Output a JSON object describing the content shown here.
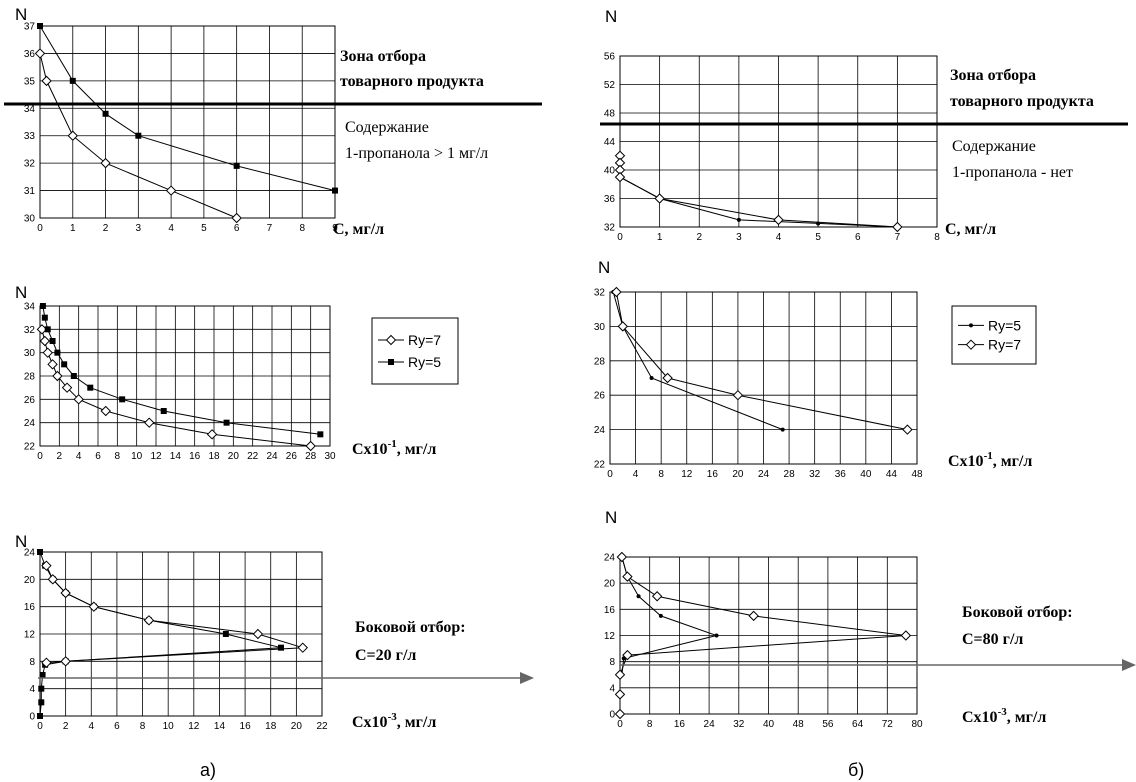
{
  "figure": {
    "caption_left": "а)",
    "caption_right": "б)"
  },
  "chart_data": [
    {
      "id": "a1",
      "type": "line",
      "ylabel": "N",
      "xlabel": "С, мг/л",
      "xlim": [
        0,
        9
      ],
      "ylim": [
        30,
        37
      ],
      "xticks": [
        "0",
        "1",
        "2",
        "3",
        "4",
        "5",
        "6",
        "7",
        "8",
        "9"
      ],
      "yticks": [
        "30",
        "31",
        "32",
        "33",
        "34",
        "35",
        "36",
        "37"
      ],
      "notes": [
        "Зона отбора",
        "товарного продукта",
        "Содержание",
        "1-пропанола > 1 мг/л"
      ],
      "series": [
        {
          "marker": "square",
          "points": [
            [
              0,
              37
            ],
            [
              1,
              35
            ],
            [
              2,
              33.8
            ],
            [
              3,
              33
            ],
            [
              6,
              31.9
            ],
            [
              9,
              31
            ]
          ]
        },
        {
          "marker": "diamond-open",
          "points": [
            [
              0,
              36
            ],
            [
              0.2,
              35
            ],
            [
              1,
              33
            ],
            [
              2,
              32
            ],
            [
              4,
              31
            ],
            [
              6,
              30
            ]
          ]
        }
      ]
    },
    {
      "id": "a2",
      "type": "line",
      "ylabel": "N",
      "xlabel": "Cx10-1, мг/л",
      "xlim": [
        0,
        30
      ],
      "ylim": [
        22,
        34
      ],
      "xticks": [
        "0",
        "2",
        "4",
        "6",
        "8",
        "10",
        "12",
        "14",
        "16",
        "18",
        "20",
        "22",
        "24",
        "26",
        "28",
        "30"
      ],
      "yticks": [
        "22",
        "24",
        "26",
        "28",
        "30",
        "32",
        "34"
      ],
      "legend": [
        "Ry=7",
        "Ry=5"
      ],
      "series": [
        {
          "name": "Ry=7",
          "marker": "diamond-open",
          "points": [
            [
              0.2,
              32
            ],
            [
              0.5,
              31
            ],
            [
              0.8,
              30
            ],
            [
              1.3,
              29
            ],
            [
              1.8,
              28
            ],
            [
              2.8,
              27
            ],
            [
              4,
              26
            ],
            [
              6.8,
              25
            ],
            [
              11.3,
              24
            ],
            [
              17.8,
              23
            ],
            [
              28,
              22
            ]
          ]
        },
        {
          "name": "Ry=5",
          "marker": "square",
          "points": [
            [
              0.3,
              34
            ],
            [
              0.5,
              33
            ],
            [
              0.8,
              32
            ],
            [
              1.3,
              31
            ],
            [
              1.8,
              30
            ],
            [
              2.5,
              29
            ],
            [
              3.5,
              28
            ],
            [
              5.2,
              27
            ],
            [
              8.5,
              26
            ],
            [
              12.8,
              25
            ],
            [
              19.3,
              24
            ],
            [
              29,
              23
            ]
          ]
        }
      ]
    },
    {
      "id": "a3",
      "type": "line",
      "ylabel": "N",
      "xlabel": "Cx10-3, мг/л",
      "xlim": [
        0,
        22
      ],
      "ylim": [
        0,
        24
      ],
      "xticks": [
        "0",
        "2",
        "4",
        "6",
        "8",
        "10",
        "12",
        "14",
        "16",
        "18",
        "20",
        "22"
      ],
      "yticks": [
        "0",
        "4",
        "8",
        "12",
        "16",
        "20",
        "24"
      ],
      "notes": [
        "Боковой отбор:",
        "С=20 г/л"
      ],
      "series": [
        {
          "marker": "square",
          "points": [
            [
              0,
              0
            ],
            [
              0.1,
              2
            ],
            [
              0.1,
              4
            ],
            [
              0.2,
              6
            ],
            [
              0.4,
              7.5
            ],
            [
              2,
              8
            ],
            [
              18.8,
              10
            ],
            [
              14.5,
              12
            ],
            [
              8.5,
              14
            ],
            [
              4.2,
              16
            ],
            [
              2,
              18
            ],
            [
              1,
              20
            ],
            [
              0.4,
              22
            ],
            [
              0,
              24
            ]
          ]
        },
        {
          "marker": "diamond-open",
          "points": [
            [
              0.5,
              7.8
            ],
            [
              2,
              8
            ],
            [
              20.5,
              10
            ],
            [
              17,
              12
            ],
            [
              8.5,
              14
            ],
            [
              4.2,
              16
            ],
            [
              2,
              18
            ],
            [
              1,
              20
            ],
            [
              0.5,
              22
            ]
          ]
        }
      ]
    },
    {
      "id": "b1",
      "type": "line",
      "ylabel": "N",
      "xlabel": "С, мг/л",
      "xlim": [
        0,
        8
      ],
      "ylim": [
        32,
        56
      ],
      "xticks": [
        "0",
        "1",
        "2",
        "3",
        "4",
        "5",
        "6",
        "7",
        "8"
      ],
      "yticks": [
        "32",
        "36",
        "40",
        "44",
        "48",
        "52",
        "56"
      ],
      "notes": [
        "Зона отбора",
        "товарного продукта",
        "Содержание",
        "1-пропанола  - нет"
      ],
      "series": [
        {
          "marker": "dot",
          "points": [
            [
              0,
              39
            ],
            [
              1,
              36
            ],
            [
              3,
              33
            ],
            [
              5,
              32.5
            ],
            [
              7,
              32
            ]
          ]
        },
        {
          "marker": "diamond-open",
          "points": [
            [
              0,
              42
            ],
            [
              0,
              41
            ],
            [
              0,
              40
            ],
            [
              0,
              39
            ],
            [
              1,
              36
            ],
            [
              4,
              33
            ],
            [
              7,
              32
            ]
          ]
        }
      ]
    },
    {
      "id": "b2",
      "type": "line",
      "ylabel": "N",
      "xlabel": "Cx10-1, мг/л",
      "xlim": [
        0,
        48
      ],
      "ylim": [
        22,
        32
      ],
      "xticks": [
        "0",
        "4",
        "8",
        "12",
        "16",
        "20",
        "24",
        "28",
        "32",
        "36",
        "40",
        "44",
        "48"
      ],
      "yticks": [
        "22",
        "24",
        "26",
        "28",
        "30",
        "32"
      ],
      "legend": [
        "Ry=5",
        "Ry=7"
      ],
      "series": [
        {
          "name": "Ry=5",
          "marker": "dot",
          "points": [
            [
              0.5,
              32
            ],
            [
              2,
              30
            ],
            [
              6.5,
              27
            ],
            [
              27,
              24
            ]
          ]
        },
        {
          "name": "Ry=7",
          "marker": "diamond-open",
          "points": [
            [
              1,
              32
            ],
            [
              2,
              30
            ],
            [
              9,
              27
            ],
            [
              20,
              26
            ],
            [
              46.5,
              24
            ]
          ]
        }
      ]
    },
    {
      "id": "b3",
      "type": "line",
      "ylabel": "N",
      "xlabel": "Cx10-3, мг/л",
      "xlim": [
        0,
        80
      ],
      "ylim": [
        0,
        24
      ],
      "xticks": [
        "0",
        "8",
        "16",
        "24",
        "32",
        "40",
        "48",
        "56",
        "64",
        "72",
        "80"
      ],
      "yticks": [
        "0",
        "4",
        "8",
        "12",
        "16",
        "20",
        "24"
      ],
      "notes": [
        "Боковой отбор:",
        "С=80 г/л"
      ],
      "series": [
        {
          "marker": "dot",
          "points": [
            [
              0.5,
              6
            ],
            [
              1,
              8.5
            ],
            [
              26,
              12
            ],
            [
              11,
              15
            ],
            [
              5,
              18
            ],
            [
              2,
              21
            ],
            [
              0.5,
              24
            ]
          ]
        },
        {
          "marker": "diamond-open",
          "points": [
            [
              0,
              0
            ],
            [
              0,
              3
            ],
            [
              0,
              6
            ],
            [
              2,
              9
            ],
            [
              77,
              12
            ],
            [
              36,
              15
            ],
            [
              10,
              18
            ],
            [
              2,
              21
            ],
            [
              0.5,
              24
            ]
          ]
        }
      ]
    }
  ]
}
